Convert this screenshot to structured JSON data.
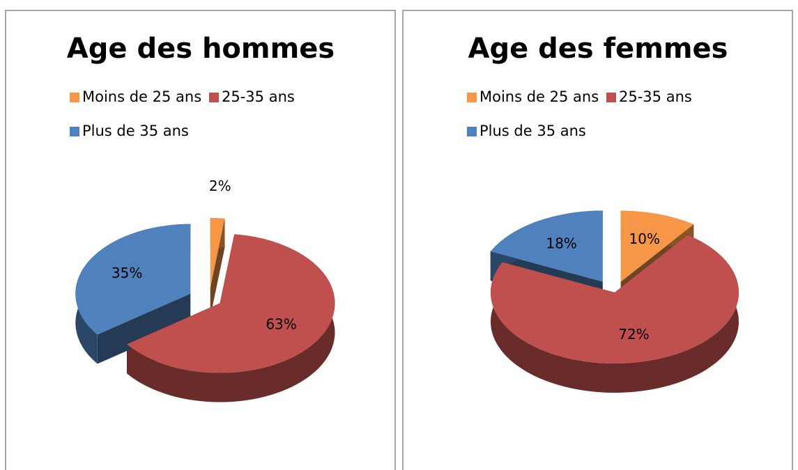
{
  "chart_data": [
    {
      "type": "pie",
      "title": "Age des hommes",
      "categories": [
        "Moins de 25 ans",
        "25-35 ans",
        "Plus de 35 ans"
      ],
      "values": [
        2,
        63,
        35
      ],
      "value_labels": [
        "2%",
        "63%",
        "35%"
      ],
      "colors": [
        "#f79646",
        "#c0504d",
        "#4f81bd"
      ]
    },
    {
      "type": "pie",
      "title": "Age des femmes",
      "categories": [
        "Moins de 25 ans",
        "25-35 ans",
        "Plus de 35 ans"
      ],
      "values": [
        10,
        72,
        18
      ],
      "value_labels": [
        "10%",
        "72%",
        "18%"
      ],
      "colors": [
        "#f79646",
        "#c0504d",
        "#4f81bd"
      ]
    }
  ]
}
